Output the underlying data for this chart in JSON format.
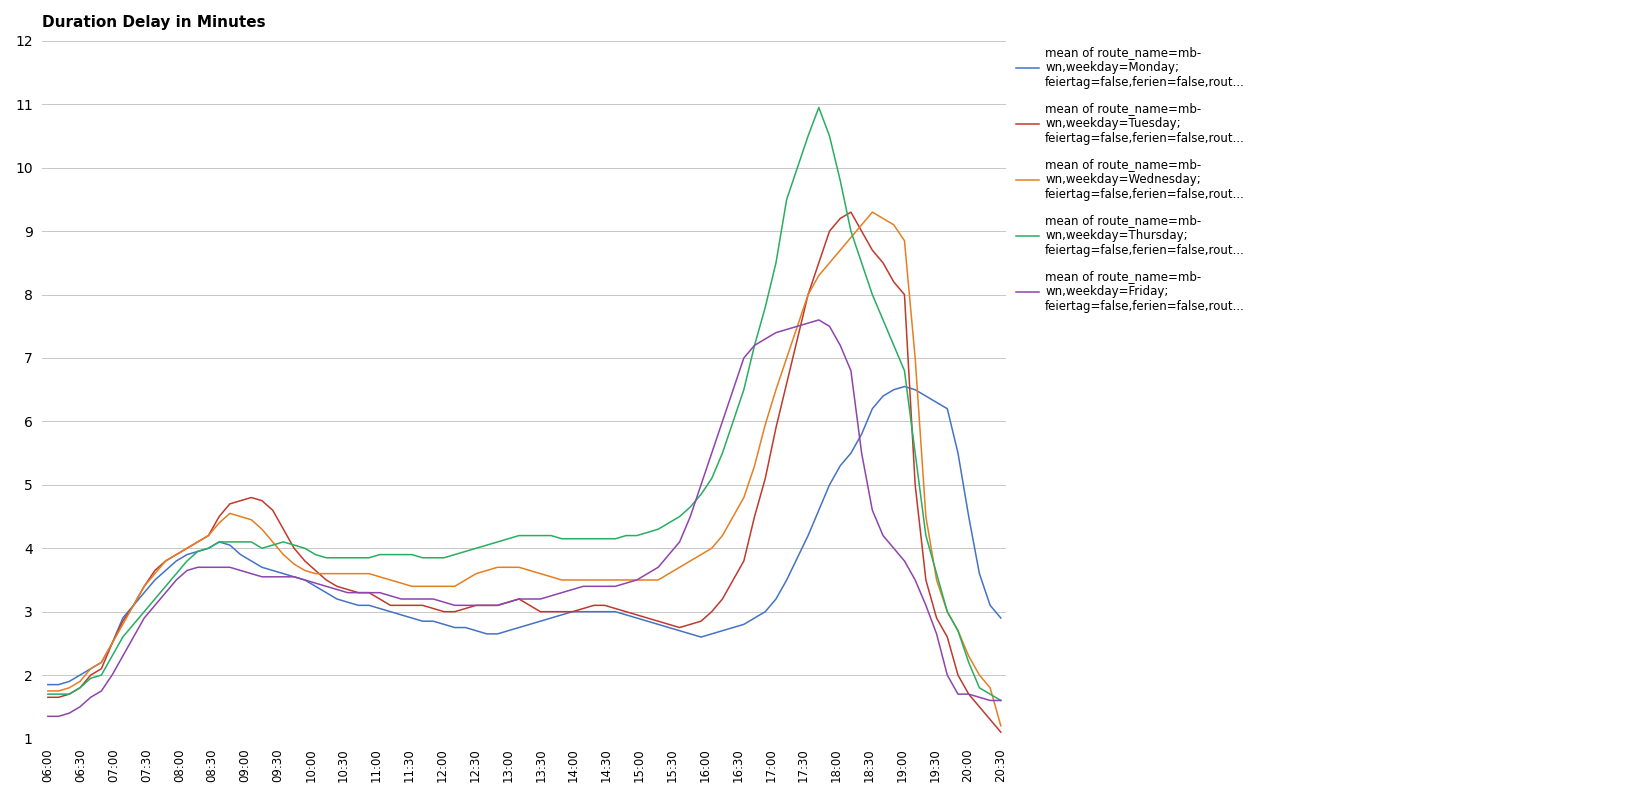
{
  "title": "Duration Delay in Minutes",
  "ylim": [
    1,
    12
  ],
  "yticks": [
    1,
    2,
    3,
    4,
    5,
    6,
    7,
    8,
    9,
    10,
    11,
    12
  ],
  "background_color": "#ffffff",
  "legend_labels": [
    "mean of route_name=mb-\nwn,weekday=Monday;\nfeiertag=false,ferien=false,rout...",
    "mean of route_name=mb-\nwn,weekday=Tuesday;\nfeiertag=false,ferien=false,rout...",
    "mean of route_name=mb-\nwn,weekday=Wednesday;\nfeiertag=false,ferien=false,rout...",
    "mean of route_name=mb-\nwn,weekday=Thursday;\nfeiertag=false,ferien=false,rout...",
    "mean of route_name=mb-\nwn,weekday=Friday;\nfeiertag=false,ferien=false,rout..."
  ],
  "colors": [
    "#4472c4",
    "#c0392b",
    "#e67e22",
    "#27ae60",
    "#8e44ad"
  ],
  "x_tick_labels": [
    "06:00",
    "06:30",
    "07:00",
    "07:30",
    "08:00",
    "08:30",
    "09:00",
    "09:30",
    "10:00",
    "10:30",
    "11:00",
    "11:30",
    "12:00",
    "12:30",
    "13:00",
    "13:30",
    "14:00",
    "14:30",
    "15:00",
    "15:30",
    "16:00",
    "16:30",
    "17:00",
    "17:30",
    "18:00",
    "18:30",
    "19:00",
    "19:30",
    "20:00",
    "20:30"
  ],
  "n_points": 90,
  "monday": [
    1.85,
    1.85,
    1.9,
    2.0,
    2.1,
    2.2,
    2.5,
    2.9,
    3.1,
    3.3,
    3.5,
    3.65,
    3.8,
    3.9,
    3.95,
    4.0,
    4.1,
    4.05,
    3.9,
    3.8,
    3.7,
    3.65,
    3.6,
    3.55,
    3.5,
    3.4,
    3.3,
    3.2,
    3.15,
    3.1,
    3.1,
    3.05,
    3.0,
    2.95,
    2.9,
    2.85,
    2.85,
    2.8,
    2.75,
    2.75,
    2.7,
    2.65,
    2.65,
    2.7,
    2.75,
    2.8,
    2.85,
    2.9,
    2.95,
    3.0,
    3.0,
    3.0,
    3.0,
    3.0,
    2.95,
    2.9,
    2.85,
    2.8,
    2.75,
    2.7,
    2.65,
    2.6,
    2.65,
    2.7,
    2.75,
    2.8,
    2.9,
    3.0,
    3.2,
    3.5,
    3.85,
    4.2,
    4.6,
    5.0,
    5.3,
    5.5,
    5.8,
    6.2,
    6.4,
    6.5,
    6.55,
    6.5,
    6.4,
    6.3,
    6.2,
    5.5,
    4.5,
    3.6,
    3.1,
    2.9
  ],
  "tuesday": [
    1.65,
    1.65,
    1.7,
    1.8,
    2.0,
    2.1,
    2.5,
    2.85,
    3.1,
    3.4,
    3.65,
    3.8,
    3.9,
    4.0,
    4.1,
    4.2,
    4.5,
    4.7,
    4.75,
    4.8,
    4.75,
    4.6,
    4.3,
    4.0,
    3.8,
    3.65,
    3.5,
    3.4,
    3.35,
    3.3,
    3.3,
    3.2,
    3.1,
    3.1,
    3.1,
    3.1,
    3.05,
    3.0,
    3.0,
    3.05,
    3.1,
    3.1,
    3.1,
    3.15,
    3.2,
    3.1,
    3.0,
    3.0,
    3.0,
    3.0,
    3.05,
    3.1,
    3.1,
    3.05,
    3.0,
    2.95,
    2.9,
    2.85,
    2.8,
    2.75,
    2.8,
    2.85,
    3.0,
    3.2,
    3.5,
    3.8,
    4.5,
    5.1,
    5.9,
    6.6,
    7.3,
    8.0,
    8.5,
    9.0,
    9.2,
    9.3,
    9.0,
    8.7,
    8.5,
    8.2,
    8.0,
    5.0,
    3.5,
    2.9,
    2.6,
    2.0,
    1.7,
    1.5,
    1.3,
    1.1
  ],
  "wednesday": [
    1.75,
    1.75,
    1.8,
    1.9,
    2.1,
    2.2,
    2.5,
    2.8,
    3.1,
    3.4,
    3.6,
    3.8,
    3.9,
    4.0,
    4.1,
    4.2,
    4.4,
    4.55,
    4.5,
    4.45,
    4.3,
    4.1,
    3.9,
    3.75,
    3.65,
    3.6,
    3.6,
    3.6,
    3.6,
    3.6,
    3.6,
    3.55,
    3.5,
    3.45,
    3.4,
    3.4,
    3.4,
    3.4,
    3.4,
    3.5,
    3.6,
    3.65,
    3.7,
    3.7,
    3.7,
    3.65,
    3.6,
    3.55,
    3.5,
    3.5,
    3.5,
    3.5,
    3.5,
    3.5,
    3.5,
    3.5,
    3.5,
    3.5,
    3.6,
    3.7,
    3.8,
    3.9,
    4.0,
    4.2,
    4.5,
    4.8,
    5.3,
    5.95,
    6.5,
    7.0,
    7.5,
    8.0,
    8.3,
    8.5,
    8.7,
    8.9,
    9.1,
    9.3,
    9.2,
    9.1,
    8.85,
    7.0,
    4.5,
    3.5,
    3.0,
    2.7,
    2.3,
    2.0,
    1.8,
    1.2
  ],
  "thursday": [
    1.7,
    1.7,
    1.7,
    1.8,
    1.95,
    2.0,
    2.3,
    2.6,
    2.8,
    3.0,
    3.2,
    3.4,
    3.6,
    3.8,
    3.95,
    4.0,
    4.1,
    4.1,
    4.1,
    4.1,
    4.0,
    4.05,
    4.1,
    4.05,
    4.0,
    3.9,
    3.85,
    3.85,
    3.85,
    3.85,
    3.85,
    3.9,
    3.9,
    3.9,
    3.9,
    3.85,
    3.85,
    3.85,
    3.9,
    3.95,
    4.0,
    4.05,
    4.1,
    4.15,
    4.2,
    4.2,
    4.2,
    4.2,
    4.15,
    4.15,
    4.15,
    4.15,
    4.15,
    4.15,
    4.2,
    4.2,
    4.25,
    4.3,
    4.4,
    4.5,
    4.65,
    4.85,
    5.1,
    5.5,
    6.0,
    6.5,
    7.2,
    7.8,
    8.5,
    9.5,
    10.0,
    10.5,
    10.95,
    10.5,
    9.8,
    9.0,
    8.5,
    8.0,
    7.6,
    7.2,
    6.8,
    5.5,
    4.2,
    3.6,
    3.0,
    2.7,
    2.2,
    1.8,
    1.7,
    1.6
  ],
  "friday": [
    1.35,
    1.35,
    1.4,
    1.5,
    1.65,
    1.75,
    2.0,
    2.3,
    2.6,
    2.9,
    3.1,
    3.3,
    3.5,
    3.65,
    3.7,
    3.7,
    3.7,
    3.7,
    3.65,
    3.6,
    3.55,
    3.55,
    3.55,
    3.55,
    3.5,
    3.45,
    3.4,
    3.35,
    3.3,
    3.3,
    3.3,
    3.3,
    3.25,
    3.2,
    3.2,
    3.2,
    3.2,
    3.15,
    3.1,
    3.1,
    3.1,
    3.1,
    3.1,
    3.15,
    3.2,
    3.2,
    3.2,
    3.25,
    3.3,
    3.35,
    3.4,
    3.4,
    3.4,
    3.4,
    3.45,
    3.5,
    3.6,
    3.7,
    3.9,
    4.1,
    4.5,
    5.0,
    5.5,
    6.0,
    6.5,
    7.0,
    7.2,
    7.3,
    7.4,
    7.45,
    7.5,
    7.55,
    7.6,
    7.5,
    7.2,
    6.8,
    5.5,
    4.6,
    4.2,
    4.0,
    3.8,
    3.5,
    3.1,
    2.65,
    2.0,
    1.7,
    1.7,
    1.65,
    1.6,
    1.6
  ]
}
